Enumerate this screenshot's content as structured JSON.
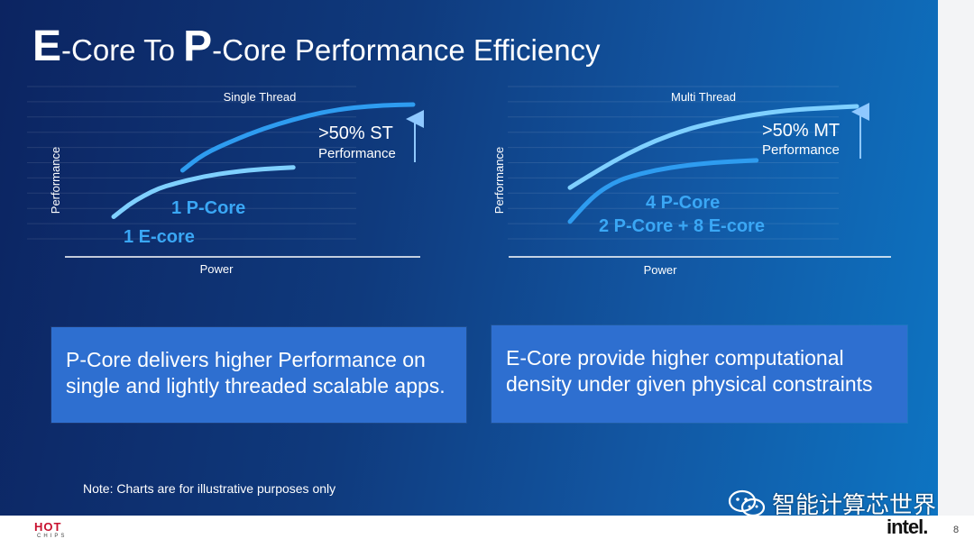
{
  "title": {
    "e_initial": "E",
    "part1": "-Core To ",
    "p_initial": "P",
    "part2": "-Core Performance Efficiency"
  },
  "chart_data": [
    {
      "type": "line",
      "title": "Single Thread",
      "xlabel": "Power",
      "ylabel": "Performance",
      "grid": true,
      "series": [
        {
          "name": "1 P-Core",
          "x": [
            0.23,
            0.3,
            0.4,
            0.5,
            0.6,
            0.7,
            0.8,
            0.9,
            1.0
          ],
          "values": [
            0.56,
            0.67,
            0.76,
            0.84,
            0.9,
            0.95,
            0.98,
            0.995,
            1.0
          ]
        },
        {
          "name": "1 E-core",
          "x": [
            0.0,
            0.05,
            0.1,
            0.15,
            0.2,
            0.3,
            0.4,
            0.5,
            0.6
          ],
          "values": [
            0.25,
            0.33,
            0.39,
            0.44,
            0.47,
            0.52,
            0.55,
            0.57,
            0.58
          ]
        }
      ],
      "annotation": {
        "value": ">50% ST",
        "label": "Performance"
      }
    },
    {
      "type": "line",
      "title": "Multi Thread",
      "xlabel": "Power",
      "ylabel": "Performance",
      "grid": true,
      "series": [
        {
          "name": "4 P-Core",
          "x": [
            0.0,
            0.1,
            0.2,
            0.3,
            0.4,
            0.5,
            0.6,
            0.7,
            0.8,
            0.9,
            1.0
          ],
          "values": [
            0.45,
            0.57,
            0.68,
            0.77,
            0.84,
            0.89,
            0.93,
            0.96,
            0.98,
            0.99,
            1.0
          ]
        },
        {
          "name": "2 P-Core + 8 E-core",
          "x": [
            0.0,
            0.05,
            0.1,
            0.15,
            0.2,
            0.3,
            0.4,
            0.5,
            0.6,
            0.65
          ],
          "values": [
            0.22,
            0.33,
            0.42,
            0.48,
            0.52,
            0.57,
            0.6,
            0.62,
            0.63,
            0.635
          ]
        }
      ],
      "annotation": {
        "value": ">50% MT",
        "label": "Performance"
      }
    }
  ],
  "boxes": {
    "left": "P-Core delivers higher Performance on single and lightly threaded scalable apps.",
    "right": "E-Core provide higher computational density under given physical constraints"
  },
  "note": "Note: Charts are for illustrative purposes only",
  "watermark": "智能计算芯世界",
  "footer": {
    "hot_top": "HOT",
    "hot_bottom": "CHIPS",
    "intel": "intel.",
    "page_number": "8"
  },
  "colors": {
    "p_core_curve": "#2e9cf0",
    "e_core_curve": "#7fd0ff",
    "p_core_label": "#3aa7f5",
    "e_core_label": "#3aa7f5",
    "box_bg": "#2e6fd0"
  }
}
